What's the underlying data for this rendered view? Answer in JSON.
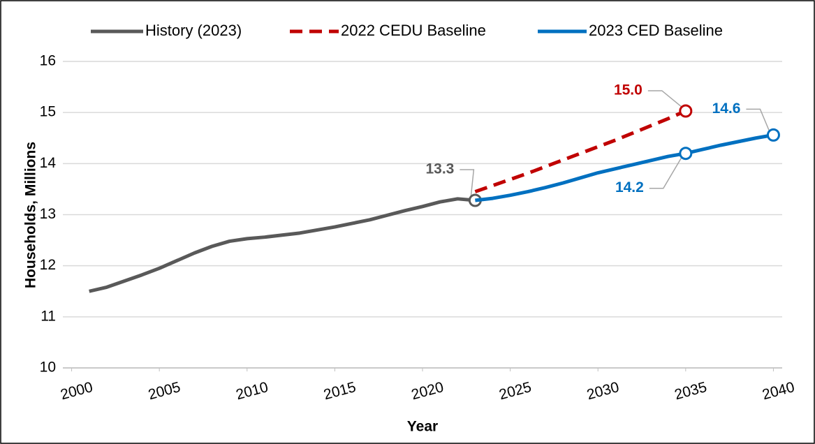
{
  "chart_data": {
    "type": "line",
    "xlabel": "Year",
    "ylabel": "Households, Millions",
    "xlim": [
      1999.5,
      2040.5
    ],
    "xticks": [
      2000,
      2005,
      2010,
      2015,
      2020,
      2025,
      2030,
      2035,
      2040
    ],
    "ylim": [
      10,
      16
    ],
    "yticks": [
      10,
      11,
      12,
      13,
      14,
      15,
      16
    ],
    "grid": true,
    "legend": "top",
    "series": [
      {
        "name": "History (2023)",
        "color": "#595959",
        "dashed": false,
        "x": [
          2001,
          2002,
          2003,
          2004,
          2005,
          2006,
          2007,
          2008,
          2009,
          2010,
          2011,
          2012,
          2013,
          2014,
          2015,
          2016,
          2017,
          2018,
          2019,
          2020,
          2021,
          2022,
          2023
        ],
        "values": [
          11.5,
          11.58,
          11.7,
          11.82,
          11.95,
          12.1,
          12.25,
          12.38,
          12.48,
          12.53,
          12.56,
          12.6,
          12.64,
          12.7,
          12.76,
          12.83,
          12.9,
          12.99,
          13.08,
          13.16,
          13.25,
          13.31,
          13.28
        ],
        "value_labels": [
          null,
          null,
          null,
          null,
          null,
          null,
          null,
          null,
          null,
          null,
          null,
          null,
          null,
          null,
          null,
          null,
          null,
          null,
          null,
          null,
          null,
          null,
          "13.3"
        ]
      },
      {
        "name": "2022 CEDU Baseline",
        "color": "#c00000",
        "dashed": true,
        "x": [
          2023,
          2024,
          2025,
          2026,
          2027,
          2028,
          2029,
          2030,
          2031,
          2032,
          2033,
          2034,
          2035
        ],
        "values": [
          13.45,
          13.57,
          13.69,
          13.81,
          13.94,
          14.07,
          14.2,
          14.33,
          14.46,
          14.6,
          14.74,
          14.88,
          15.03
        ],
        "value_labels": [
          null,
          null,
          null,
          null,
          null,
          null,
          null,
          null,
          null,
          null,
          null,
          null,
          "15.0"
        ]
      },
      {
        "name": "2023 CED Baseline",
        "color": "#0070c0",
        "dashed": false,
        "x": [
          2023,
          2024,
          2025,
          2026,
          2027,
          2028,
          2029,
          2030,
          2031,
          2032,
          2033,
          2034,
          2035,
          2036,
          2037,
          2038,
          2039,
          2040
        ],
        "values": [
          13.28,
          13.32,
          13.38,
          13.45,
          13.53,
          13.62,
          13.72,
          13.82,
          13.9,
          13.98,
          14.06,
          14.14,
          14.2,
          14.28,
          14.36,
          14.43,
          14.5,
          14.56
        ],
        "value_labels": [
          null,
          null,
          null,
          null,
          null,
          null,
          null,
          null,
          null,
          null,
          null,
          null,
          "14.2",
          null,
          null,
          null,
          null,
          "14.6"
        ]
      }
    ]
  }
}
